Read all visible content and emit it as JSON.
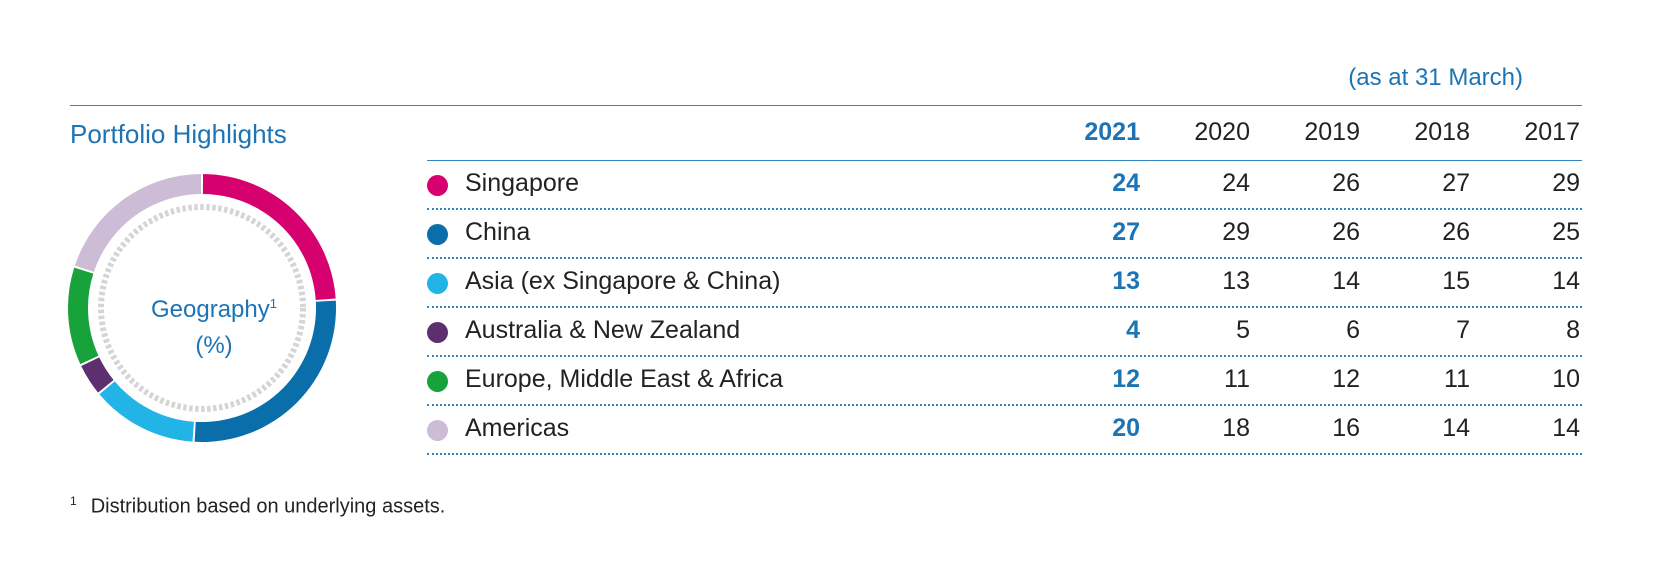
{
  "header": {
    "as_at": "(as at 31 March)",
    "title": "Portfolio Highlights"
  },
  "donut": {
    "label": "Geography",
    "label_sup": "1",
    "unit": "(%)"
  },
  "footnote": {
    "mark": "1",
    "text": "Distribution based on underlying assets."
  },
  "chart_data": {
    "type": "table",
    "title": "Portfolio Highlights",
    "subtitle": "(as at 31 March)",
    "columns": [
      "2021",
      "2020",
      "2019",
      "2018",
      "2017"
    ],
    "rows": [
      {
        "name": "Singapore",
        "color": "#d6006e",
        "values": [
          "24",
          "24",
          "26",
          "27",
          "29"
        ]
      },
      {
        "name": "China",
        "color": "#0a6eab",
        "values": [
          "27",
          "29",
          "26",
          "26",
          "25"
        ]
      },
      {
        "name": "Asia (ex Singapore & China)",
        "color": "#22b4e6",
        "values": [
          "13",
          "13",
          "14",
          "15",
          "14"
        ]
      },
      {
        "name": "Australia & New Zealand",
        "color": "#5e2f6e",
        "values": [
          "4",
          "5",
          "6",
          "7",
          "8"
        ]
      },
      {
        "name": "Europe, Middle East & Africa",
        "color": "#18a23b",
        "values": [
          "12",
          "11",
          "12",
          "11",
          "10"
        ]
      },
      {
        "name": "Americas",
        "color": "#cdbcd5",
        "values": [
          "20",
          "18",
          "16",
          "14",
          "14"
        ]
      }
    ],
    "donut_series": "2021"
  }
}
